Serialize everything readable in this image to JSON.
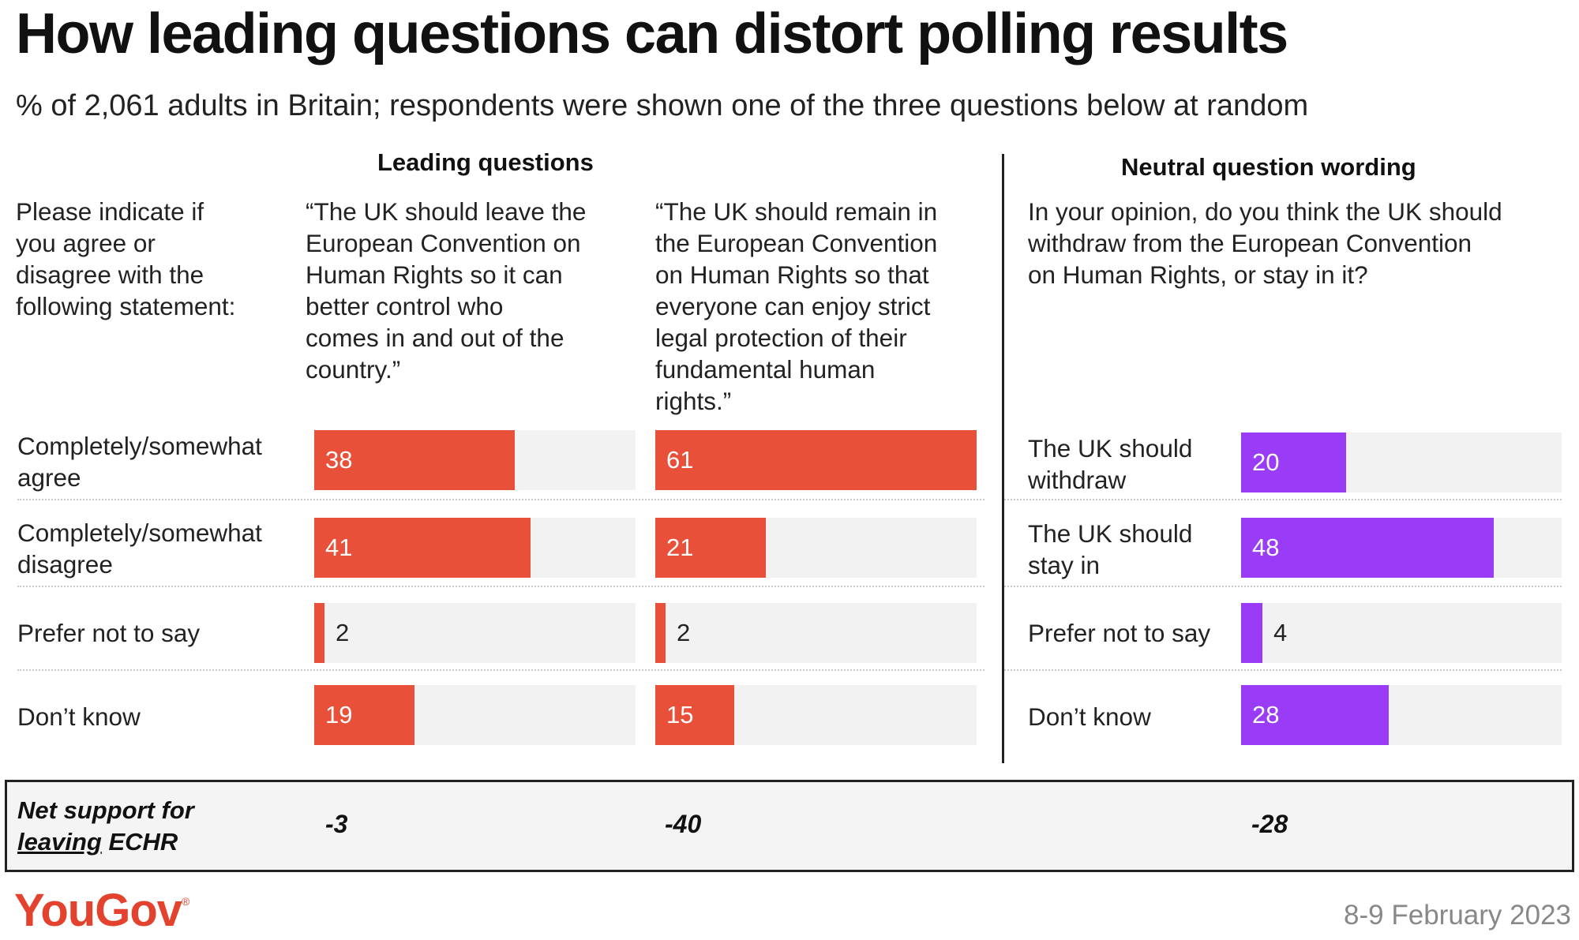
{
  "title": "How leading questions can distort polling results",
  "subtitle": "% of 2,061 adults in Britain; respondents were shown one of the three questions below at random",
  "sections": {
    "leading": "Leading questions",
    "neutral": "Neutral question wording"
  },
  "question_intro": "Please indicate if\nyou agree or\ndisagree with the\nfollowing statement:",
  "question_leave": "“The UK should leave the\nEuropean Convention on\nHuman Rights so it can\nbetter control who\ncomes in and out of the\ncountry.”",
  "question_remain": "“The UK should remain in\nthe European Convention\non Human Rights so that\neveryone can enjoy strict\nlegal protection of their\nfundamental human\nrights.”",
  "question_neutral": "In your opinion, do you think the UK should\nwithdraw from the European Convention\non Human Rights, or stay in it?",
  "row_labels_leading": [
    "Completely/somewhat\nagree",
    "Completely/somewhat\ndisagree",
    "Prefer not to say",
    "Don’t know"
  ],
  "row_labels_neutral": [
    "The UK should\nwithdraw",
    "The UK should\nstay in",
    "Prefer not to say",
    "Don’t know"
  ],
  "colors": {
    "leading": "#e8503a",
    "neutral": "#9a3cf5",
    "track": "#f2f2f2"
  },
  "chart_data": {
    "type": "bar",
    "title": "How leading questions can distort polling results",
    "unit": "%",
    "xlim": [
      0,
      61
    ],
    "series": [
      {
        "name": "Leading question: leave",
        "categories": [
          "Completely/somewhat agree",
          "Completely/somewhat disagree",
          "Prefer not to say",
          "Don’t know"
        ],
        "values": [
          38,
          41,
          2,
          19
        ]
      },
      {
        "name": "Leading question: remain",
        "categories": [
          "Completely/somewhat agree",
          "Completely/somewhat disagree",
          "Prefer not to say",
          "Don’t know"
        ],
        "values": [
          61,
          21,
          2,
          15
        ]
      },
      {
        "name": "Neutral question wording",
        "categories": [
          "The UK should withdraw",
          "The UK should stay in",
          "Prefer not to say",
          "Don’t know"
        ],
        "values": [
          20,
          48,
          4,
          28
        ]
      }
    ]
  },
  "net": {
    "label_prefix": "Net support for",
    "label_underlined": "leaving",
    "label_suffix": " ECHR",
    "values": [
      "-3",
      "-40",
      "-28"
    ]
  },
  "logo": {
    "text": "YouGov",
    "mark": "®"
  },
  "date": "8-9 February 2023"
}
